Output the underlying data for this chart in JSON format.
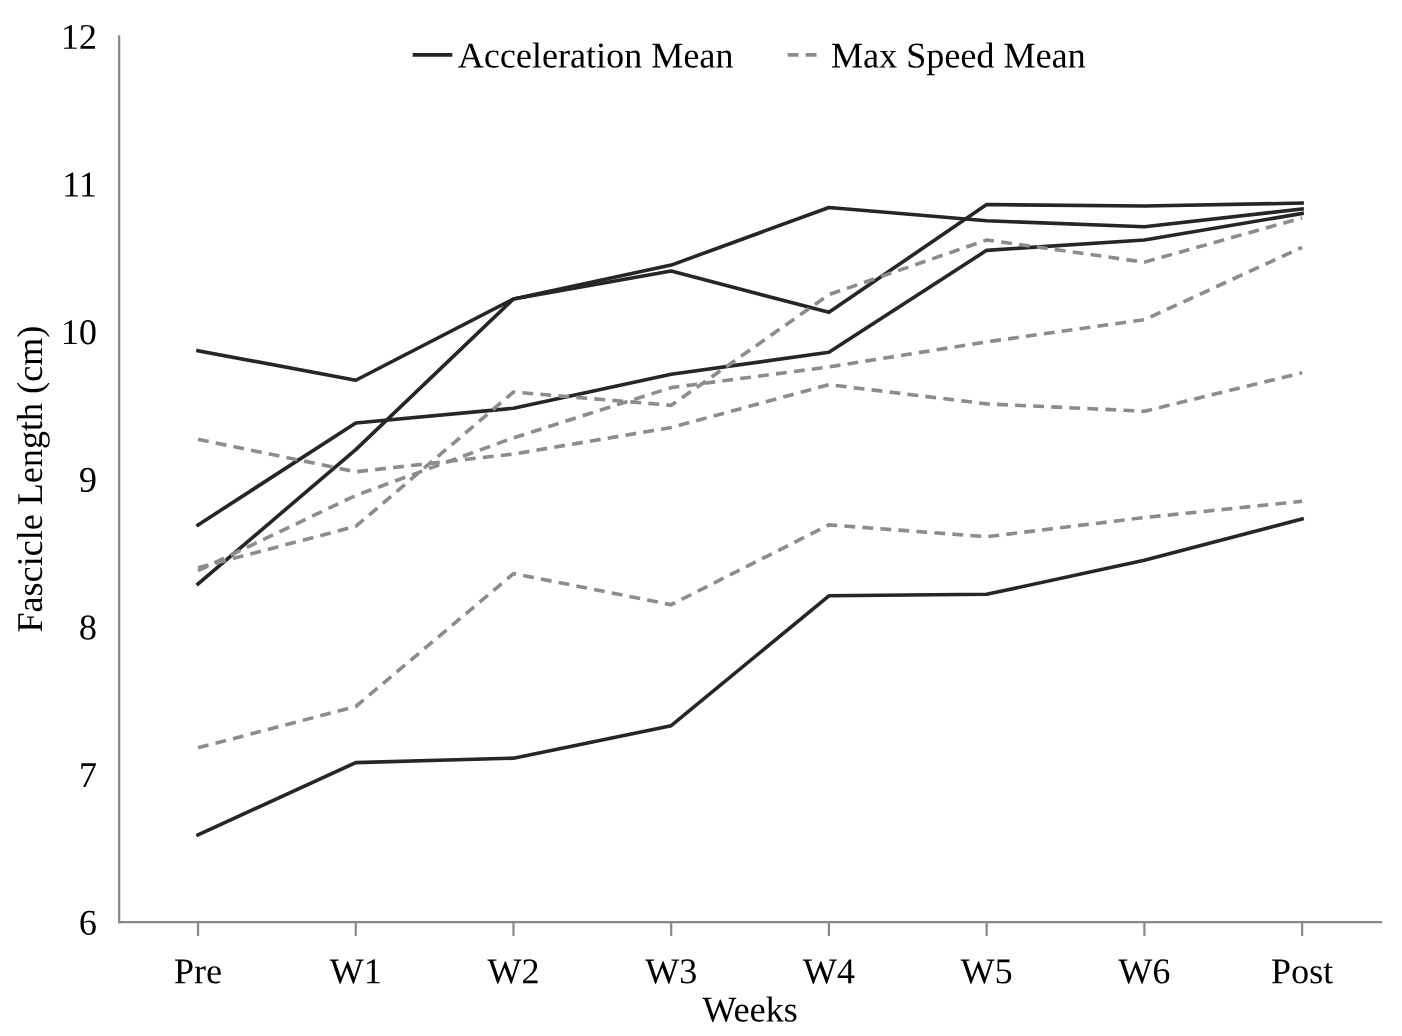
{
  "chart_data": {
    "type": "line",
    "xlabel": "Weeks",
    "ylabel": "Fascicle Length (cm)",
    "categories": [
      "Pre",
      "W1",
      "W2",
      "W3",
      "W4",
      "W5",
      "W6",
      "Post"
    ],
    "ylim": [
      6,
      12
    ],
    "yticks": [
      6,
      7,
      8,
      9,
      10,
      11,
      12
    ],
    "grid": false,
    "legend": "top",
    "marker": "none",
    "series": [
      {
        "name": "Acceleration Mean",
        "color": "#262626",
        "line_style": "solid",
        "values": [
          9.87,
          9.67,
          10.22,
          10.45,
          10.84,
          10.75,
          10.71,
          10.83
        ]
      },
      {
        "color": "#262626",
        "line_style": "solid",
        "values": [
          8.29,
          9.2,
          10.22,
          10.41,
          10.13,
          10.86,
          10.85,
          10.87
        ]
      },
      {
        "color": "#262626",
        "line_style": "solid",
        "values": [
          8.69,
          9.38,
          9.48,
          9.71,
          9.86,
          10.55,
          10.62,
          10.8
        ]
      },
      {
        "color": "#262626",
        "line_style": "solid",
        "values": [
          6.59,
          7.08,
          7.11,
          7.33,
          8.21,
          8.22,
          8.45,
          8.73
        ]
      },
      {
        "name": "Max Speed Mean",
        "color": "#8c8c8c",
        "line_style": "dashed",
        "values": [
          9.27,
          9.05,
          9.17,
          9.35,
          9.64,
          9.51,
          9.46,
          9.72
        ]
      },
      {
        "color": "#8c8c8c",
        "line_style": "dashed",
        "values": [
          8.4,
          8.68,
          9.59,
          9.5,
          10.25,
          10.62,
          10.47,
          10.77
        ]
      },
      {
        "color": "#8c8c8c",
        "line_style": "dashed",
        "values": [
          8.38,
          8.89,
          9.28,
          9.62,
          9.76,
          9.93,
          10.08,
          10.57
        ]
      },
      {
        "color": "#8c8c8c",
        "line_style": "dashed",
        "values": [
          7.18,
          7.46,
          8.36,
          8.15,
          8.69,
          8.61,
          8.74,
          8.85
        ]
      }
    ]
  }
}
